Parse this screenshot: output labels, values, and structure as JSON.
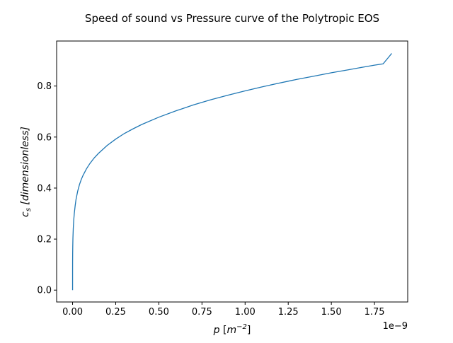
{
  "chart_data": {
    "type": "line",
    "title": "Speed of sound vs Pressure curve of the Polytropic EOS",
    "xlabel": {
      "var": "p",
      "unit_open": "[",
      "unit_base": "m",
      "unit_exp": "−2",
      "unit_close": "]"
    },
    "ylabel": {
      "var": "c",
      "sub": "s",
      "unit": "[dimensionless]"
    },
    "x_offset_text": "1e−9",
    "x_scale_factor": 1e-09,
    "xlim": [
      -0.0925,
      1.9425
    ],
    "ylim": [
      -0.0465,
      0.9765
    ],
    "xticks": [
      0.0,
      0.25,
      0.5,
      0.75,
      1.0,
      1.25,
      1.5,
      1.75
    ],
    "xtick_labels": [
      "0.00",
      "0.25",
      "0.50",
      "0.75",
      "1.00",
      "1.25",
      "1.50",
      "1.75"
    ],
    "yticks": [
      0.0,
      0.2,
      0.4,
      0.6,
      0.8
    ],
    "ytick_labels": [
      "0.0",
      "0.2",
      "0.4",
      "0.6",
      "0.8"
    ],
    "grid": false,
    "series": [
      {
        "color": "#1f77b4",
        "x": [
          0,
          5e-05,
          0.0002,
          0.0005,
          0.001,
          0.002,
          0.004,
          0.007,
          0.01,
          0.015,
          0.02,
          0.03,
          0.04,
          0.05,
          0.06,
          0.08,
          0.1,
          0.125,
          0.15,
          0.2,
          0.25,
          0.3,
          0.35,
          0.4,
          0.5,
          0.6,
          0.7,
          0.75,
          0.8,
          0.9,
          1.0,
          1.1,
          1.2,
          1.25,
          1.3,
          1.4,
          1.5,
          1.6,
          1.7,
          1.75,
          1.8,
          1.85
        ],
        "y": [
          0.0,
          0.076,
          0.111,
          0.143,
          0.17,
          0.203,
          0.242,
          0.277,
          0.301,
          0.331,
          0.356,
          0.389,
          0.414,
          0.433,
          0.449,
          0.475,
          0.496,
          0.518,
          0.536,
          0.567,
          0.592,
          0.614,
          0.632,
          0.649,
          0.678,
          0.703,
          0.726,
          0.736,
          0.746,
          0.764,
          0.781,
          0.797,
          0.812,
          0.819,
          0.826,
          0.839,
          0.852,
          0.864,
          0.876,
          0.882,
          0.887,
          0.928
        ]
      }
    ]
  }
}
